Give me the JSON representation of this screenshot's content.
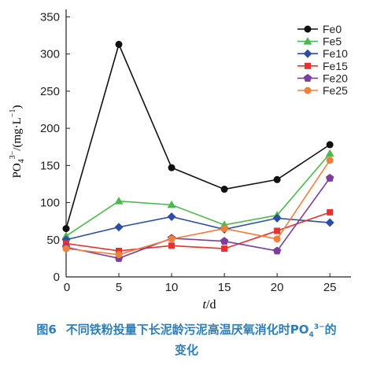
{
  "chart_data": {
    "type": "line",
    "xlabel_var": "t",
    "xlabel_unit": "/d",
    "ylabel_base": "PO",
    "ylabel_sub": "4",
    "ylabel_sup": "3−",
    "ylabel_unit": "/(mg·L",
    "ylabel_unit_sup": "−1",
    "ylabel_close": ")",
    "x": [
      0,
      5,
      10,
      15,
      20,
      25
    ],
    "xlim": [
      0,
      27
    ],
    "ylim": [
      0,
      360
    ],
    "xticks": [
      5,
      10,
      15,
      20,
      25
    ],
    "xtick_zero_label": "0",
    "yticks": [
      0,
      50,
      100,
      150,
      200,
      250,
      300,
      350
    ],
    "legend_position": "top-right",
    "grid": false,
    "series": [
      {
        "name": "Fe0",
        "color": "#111111",
        "marker": "circle",
        "values": [
          65,
          313,
          147,
          118,
          131,
          178
        ]
      },
      {
        "name": "Fe5",
        "color": "#4cb84c",
        "marker": "triangle",
        "values": [
          55,
          102,
          97,
          70,
          83,
          166
        ]
      },
      {
        "name": "Fe10",
        "color": "#2d4fa3",
        "marker": "diamond",
        "values": [
          50,
          67,
          81,
          64,
          79,
          73
        ]
      },
      {
        "name": "Fe15",
        "color": "#e8302f",
        "marker": "square",
        "values": [
          45,
          35,
          42,
          38,
          62,
          87
        ]
      },
      {
        "name": "Fe20",
        "color": "#7b3f99",
        "marker": "pentagon",
        "values": [
          40,
          25,
          52,
          48,
          35,
          133
        ]
      },
      {
        "name": "Fe25",
        "color": "#f07f3c",
        "marker": "circle",
        "values": [
          38,
          30,
          51,
          65,
          51,
          157
        ]
      }
    ]
  },
  "caption": {
    "label": "图6",
    "text": "不同铁粉投量下长泥龄污泥高温厌氧消化时PO",
    "sub": "4",
    "sup": "3−",
    "text_end": "的",
    "line2": "变化"
  }
}
